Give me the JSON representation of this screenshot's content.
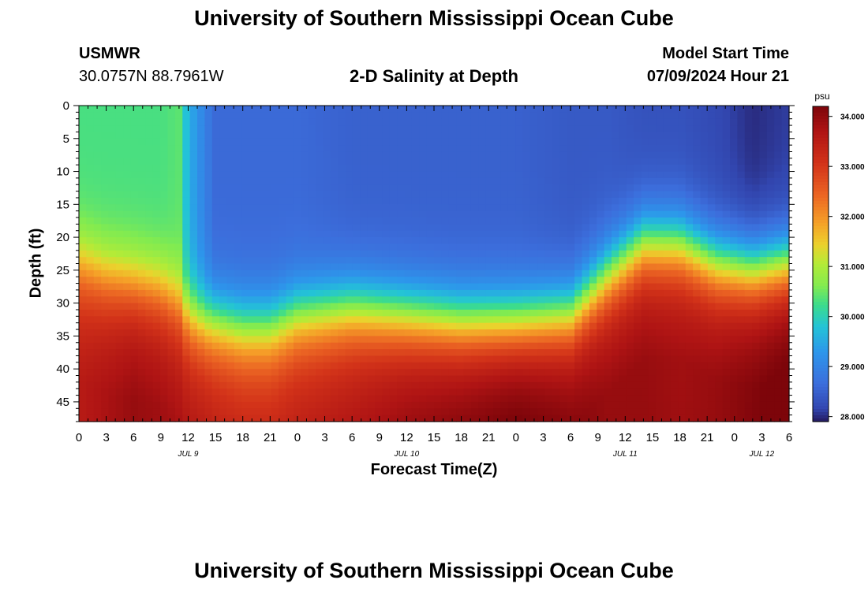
{
  "page": {
    "title_top": "University of Southern Mississippi Ocean Cube",
    "title_bottom": "University of Southern Mississippi Ocean Cube"
  },
  "station": {
    "name": "USMWR",
    "coords": "30.0757N  88.7961W"
  },
  "plot_title": "2-D Salinity at Depth",
  "model": {
    "label": "Model Start Time",
    "value": "07/09/2024 Hour 21"
  },
  "chart_data": {
    "type": "heatmap",
    "title": "2-D Salinity at Depth",
    "xlabel": "Forecast Time(Z)",
    "ylabel": "Depth (ft)",
    "x_tick_labels": [
      "0",
      "3",
      "6",
      "9",
      "12",
      "15",
      "18",
      "21",
      "0",
      "3",
      "6",
      "9",
      "12",
      "15",
      "18",
      "21",
      "0",
      "3",
      "6",
      "9",
      "12",
      "15",
      "18",
      "21",
      "0",
      "3",
      "6"
    ],
    "x_hours": [
      0,
      3,
      6,
      9,
      12,
      15,
      18,
      21,
      24,
      27,
      30,
      33,
      36,
      39,
      42,
      45,
      48,
      51,
      54,
      57,
      60,
      63,
      66,
      69,
      72,
      75,
      78
    ],
    "date_labels": [
      {
        "text": "JUL 9",
        "hour": 12
      },
      {
        "text": "JUL 10",
        "hour": 36
      },
      {
        "text": "JUL 11",
        "hour": 60
      },
      {
        "text": "JUL 12",
        "hour": 75
      }
    ],
    "y_ticks": [
      0,
      5,
      10,
      15,
      20,
      25,
      30,
      35,
      40,
      45
    ],
    "xlim": [
      0,
      78
    ],
    "ylim": [
      0,
      48
    ],
    "colorbar": {
      "unit": "psu",
      "range": [
        27.9,
        34.2
      ],
      "ticks": [
        "34.000",
        "33.000",
        "32.000",
        "31.000",
        "30.000",
        "29.000",
        "28.000"
      ],
      "tick_values": [
        34,
        33,
        32,
        31,
        30,
        29,
        28
      ]
    },
    "columns": [
      {
        "hour": 0,
        "interface_depth": 24,
        "surface": 30.3,
        "bottom": 33.2
      },
      {
        "hour": 3,
        "interface_depth": 26,
        "surface": 30.3,
        "bottom": 33.4
      },
      {
        "hour": 6,
        "interface_depth": 27,
        "surface": 30.3,
        "bottom": 33.6
      },
      {
        "hour": 9,
        "interface_depth": 28,
        "surface": 30.3,
        "bottom": 33.5
      },
      {
        "hour": 11,
        "interface_depth": 30,
        "surface": 30.4,
        "bottom": 33.4
      },
      {
        "hour": 12,
        "interface_depth": 32,
        "surface": 29.6,
        "bottom": 33.3
      },
      {
        "hour": 14,
        "interface_depth": 33,
        "surface": 28.9,
        "bottom": 33.2
      },
      {
        "hour": 15,
        "interface_depth": 33,
        "surface": 28.6,
        "bottom": 33.1
      },
      {
        "hour": 18,
        "interface_depth": 34,
        "surface": 28.6,
        "bottom": 33.0
      },
      {
        "hour": 21,
        "interface_depth": 34,
        "surface": 28.6,
        "bottom": 33.0
      },
      {
        "hour": 24,
        "interface_depth": 32,
        "surface": 28.6,
        "bottom": 33.1
      },
      {
        "hour": 30,
        "interface_depth": 31,
        "surface": 28.5,
        "bottom": 33.3
      },
      {
        "hour": 36,
        "interface_depth": 32,
        "surface": 28.5,
        "bottom": 33.6
      },
      {
        "hour": 42,
        "interface_depth": 33,
        "surface": 28.5,
        "bottom": 33.8
      },
      {
        "hour": 48,
        "interface_depth": 33,
        "surface": 28.5,
        "bottom": 34.0
      },
      {
        "hour": 54,
        "interface_depth": 32,
        "surface": 28.4,
        "bottom": 33.8
      },
      {
        "hour": 58,
        "interface_depth": 26,
        "surface": 28.4,
        "bottom": 33.6
      },
      {
        "hour": 62,
        "interface_depth": 21,
        "surface": 28.3,
        "bottom": 33.6
      },
      {
        "hour": 66,
        "interface_depth": 21,
        "surface": 28.3,
        "bottom": 33.5
      },
      {
        "hour": 70,
        "interface_depth": 24,
        "surface": 28.2,
        "bottom": 33.6
      },
      {
        "hour": 74,
        "interface_depth": 25,
        "surface": 28.0,
        "bottom": 33.8
      },
      {
        "hour": 78,
        "interface_depth": 24,
        "surface": 28.1,
        "bottom": 34.0
      }
    ]
  }
}
